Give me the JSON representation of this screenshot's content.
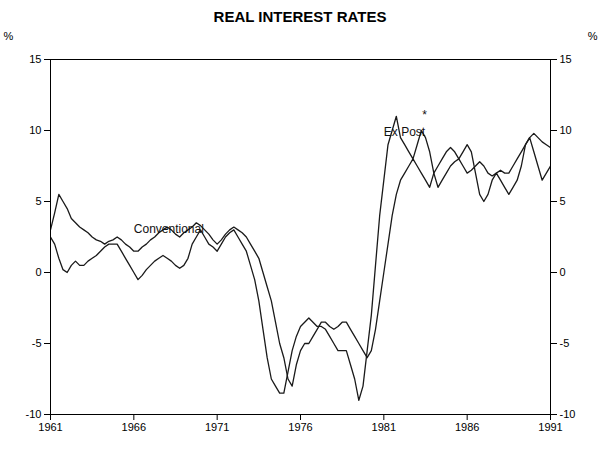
{
  "chart_data": {
    "type": "line",
    "title": "REAL INTEREST RATES",
    "ylabel": "%",
    "y2label": "%",
    "xlim": [
      1961,
      1991
    ],
    "ylim": [
      -10,
      15
    ],
    "y2lim": [
      -10,
      15
    ],
    "xticks": [
      1961,
      1966,
      1971,
      1976,
      1981,
      1986,
      1991
    ],
    "yticks": [
      -10,
      -5,
      0,
      5,
      10,
      15
    ],
    "y2ticks": [
      -10,
      -5,
      0,
      5,
      10,
      15
    ],
    "grid": false,
    "x": [
      1961.0,
      1961.25,
      1961.5,
      1961.75,
      1962.0,
      1962.25,
      1962.5,
      1962.75,
      1963.0,
      1963.25,
      1963.5,
      1963.75,
      1964.0,
      1964.25,
      1964.5,
      1964.75,
      1965.0,
      1965.25,
      1965.5,
      1965.75,
      1966.0,
      1966.25,
      1966.5,
      1966.75,
      1967.0,
      1967.25,
      1967.5,
      1967.75,
      1968.0,
      1968.25,
      1968.5,
      1968.75,
      1969.0,
      1969.25,
      1969.5,
      1969.75,
      1970.0,
      1970.25,
      1970.5,
      1970.75,
      1971.0,
      1971.25,
      1971.5,
      1971.75,
      1972.0,
      1972.25,
      1972.5,
      1972.75,
      1973.0,
      1973.25,
      1973.5,
      1973.75,
      1974.0,
      1974.25,
      1974.5,
      1974.75,
      1975.0,
      1975.25,
      1975.5,
      1975.75,
      1976.0,
      1976.25,
      1976.5,
      1976.75,
      1977.0,
      1977.25,
      1977.5,
      1977.75,
      1978.0,
      1978.25,
      1978.5,
      1978.75,
      1979.0,
      1979.25,
      1979.5,
      1979.75,
      1980.0,
      1980.25,
      1980.5,
      1980.75,
      1981.0,
      1981.25,
      1981.5,
      1981.75,
      1982.0,
      1982.25,
      1982.5,
      1982.75,
      1983.0,
      1983.25,
      1983.5,
      1983.75,
      1984.0,
      1984.25,
      1984.5,
      1984.75,
      1985.0,
      1985.25,
      1985.5,
      1985.75,
      1986.0,
      1986.25,
      1986.5,
      1986.75,
      1987.0,
      1987.25,
      1987.5,
      1987.75,
      1988.0,
      1988.25,
      1988.5,
      1988.75,
      1989.0,
      1989.25,
      1989.5,
      1989.75,
      1990.0,
      1990.25,
      1990.5,
      1990.75,
      1991.0
    ],
    "series": [
      {
        "name": "Conventional",
        "color": "#1a1a1a",
        "label_x": 1966.0,
        "label_y": 2.8,
        "values": [
          3.0,
          4.2,
          5.5,
          5.0,
          4.5,
          3.8,
          3.5,
          3.2,
          3.0,
          2.8,
          2.5,
          2.3,
          2.2,
          2.0,
          2.2,
          2.3,
          2.5,
          2.3,
          2.0,
          1.8,
          1.5,
          1.5,
          1.8,
          2.0,
          2.3,
          2.5,
          2.8,
          3.0,
          3.2,
          3.0,
          2.7,
          2.5,
          2.8,
          3.0,
          3.2,
          3.5,
          3.3,
          3.0,
          2.7,
          2.3,
          2.0,
          2.3,
          2.7,
          3.0,
          3.2,
          3.0,
          2.8,
          2.5,
          2.0,
          1.5,
          1.0,
          0.0,
          -1.0,
          -2.0,
          -3.5,
          -5.0,
          -6.0,
          -7.5,
          -8.0,
          -6.5,
          -5.5,
          -5.0,
          -5.0,
          -4.5,
          -4.0,
          -3.5,
          -3.5,
          -3.8,
          -4.0,
          -3.8,
          -3.5,
          -3.5,
          -4.0,
          -4.5,
          -5.0,
          -5.5,
          -6.0,
          -5.5,
          -4.0,
          -2.0,
          0.0,
          2.0,
          4.0,
          5.5,
          6.5,
          7.0,
          7.5,
          8.0,
          7.5,
          7.0,
          6.5,
          6.0,
          7.0,
          7.5,
          8.0,
          8.5,
          8.8,
          8.5,
          8.0,
          7.5,
          7.0,
          7.2,
          7.5,
          7.8,
          7.5,
          7.0,
          6.8,
          7.0,
          7.2,
          7.0,
          7.0,
          7.5,
          8.0,
          8.5,
          9.0,
          9.5,
          9.8,
          9.5,
          9.2,
          9.0,
          8.8
        ]
      },
      {
        "name": "Ex Post",
        "color": "#1a1a1a",
        "label_x": 1981.0,
        "label_y": 9.6,
        "values": [
          2.5,
          2.0,
          1.0,
          0.2,
          0.0,
          0.5,
          0.8,
          0.5,
          0.5,
          0.8,
          1.0,
          1.2,
          1.5,
          1.8,
          2.0,
          2.0,
          2.0,
          1.5,
          1.0,
          0.5,
          0.0,
          -0.5,
          -0.2,
          0.2,
          0.5,
          0.8,
          1.0,
          1.2,
          1.0,
          0.8,
          0.5,
          0.3,
          0.5,
          1.0,
          2.0,
          2.5,
          3.0,
          2.5,
          2.0,
          1.8,
          1.5,
          2.0,
          2.5,
          2.8,
          3.0,
          2.5,
          2.0,
          1.5,
          0.5,
          -0.5,
          -2.0,
          -4.0,
          -6.0,
          -7.5,
          -8.0,
          -8.5,
          -8.5,
          -7.0,
          -5.5,
          -4.5,
          -3.8,
          -3.5,
          -3.2,
          -3.5,
          -3.8,
          -3.8,
          -4.0,
          -4.5,
          -5.0,
          -5.5,
          -5.5,
          -5.5,
          -6.5,
          -7.5,
          -9.0,
          -8.0,
          -5.5,
          -3.0,
          0.5,
          4.0,
          6.5,
          9.0,
          10.0,
          11.0,
          9.5,
          9.0,
          8.5,
          8.0,
          9.0,
          10.0,
          9.5,
          8.5,
          7.0,
          6.0,
          6.5,
          7.0,
          7.5,
          7.8,
          8.0,
          8.5,
          9.0,
          8.5,
          7.0,
          5.5,
          5.0,
          5.5,
          6.5,
          7.0,
          6.5,
          6.0,
          5.5,
          6.0,
          6.5,
          7.5,
          9.0,
          9.5,
          8.5,
          7.5,
          6.5,
          7.0,
          7.5
        ]
      }
    ],
    "annotations": [
      {
        "text": "*",
        "x": 1983.3,
        "y": 10.8
      }
    ]
  }
}
